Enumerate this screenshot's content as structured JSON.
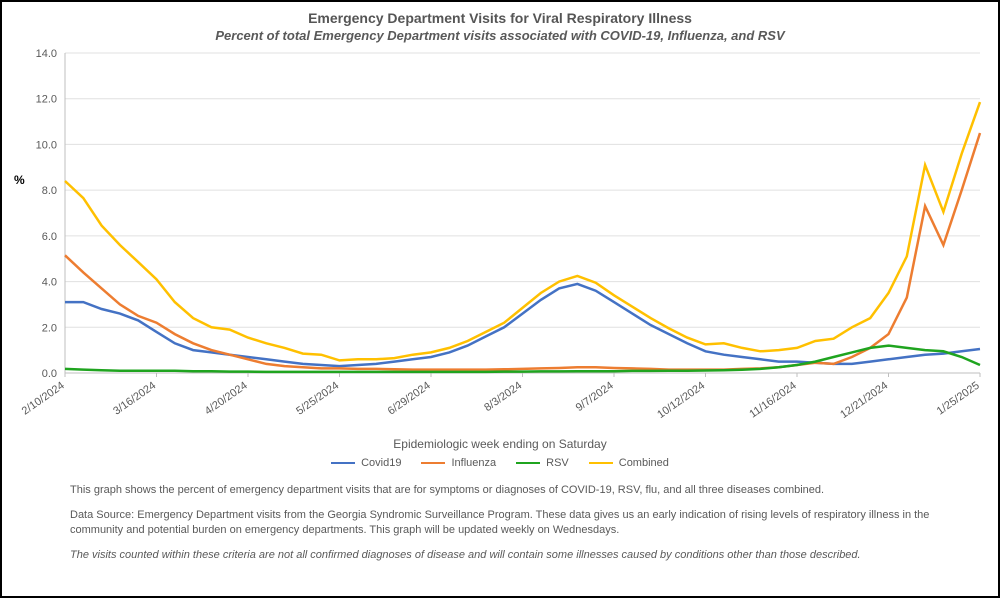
{
  "chart": {
    "type": "line",
    "title": "Emergency Department Visits for Viral Respiratory Illness",
    "subtitle": "Percent of total Emergency Department visits associated with COVID-19, Influenza, and RSV",
    "y_axis": {
      "label": "%",
      "min": 0.0,
      "max": 14.0,
      "tick_step": 2.0,
      "ticks": [
        "0.0",
        "2.0",
        "4.0",
        "6.0",
        "8.0",
        "10.0",
        "12.0",
        "14.0"
      ],
      "label_fontsize": 12,
      "tick_fontsize": 11
    },
    "x_axis": {
      "title": "Epidemiologic week ending on Saturday",
      "tick_indices": [
        0,
        5,
        10,
        15,
        20,
        25,
        30,
        35,
        40,
        45,
        50
      ],
      "tick_labels": [
        "2/10/2024",
        "3/16/2024",
        "4/20/2024",
        "5/25/2024",
        "6/29/2024",
        "8/3/2024",
        "9/7/2024",
        "10/12/2024",
        "11/16/2024",
        "12/21/2024",
        "1/25/2025"
      ],
      "tick_fontsize": 11,
      "rotation_deg": -35
    },
    "n_points": 51,
    "grid_color": "#e0e0e0",
    "axis_color": "#bfbfbf",
    "background_color": "#ffffff",
    "line_width": 2.5,
    "series": [
      {
        "name": "Covid19",
        "color": "#4472c4",
        "values": [
          3.1,
          3.1,
          2.8,
          2.6,
          2.3,
          1.8,
          1.3,
          1.0,
          0.9,
          0.8,
          0.7,
          0.6,
          0.5,
          0.4,
          0.35,
          0.3,
          0.35,
          0.4,
          0.5,
          0.6,
          0.7,
          0.9,
          1.2,
          1.6,
          2.0,
          2.6,
          3.2,
          3.7,
          3.9,
          3.6,
          3.1,
          2.6,
          2.1,
          1.7,
          1.3,
          0.95,
          0.8,
          0.7,
          0.6,
          0.5,
          0.5,
          0.45,
          0.4,
          0.4,
          0.5,
          0.6,
          0.7,
          0.8,
          0.85,
          0.95,
          1.05
        ]
      },
      {
        "name": "Influenza",
        "color": "#ed7d31",
        "values": [
          5.15,
          4.4,
          3.7,
          3.0,
          2.5,
          2.2,
          1.7,
          1.3,
          1.0,
          0.8,
          0.6,
          0.4,
          0.3,
          0.25,
          0.2,
          0.2,
          0.18,
          0.18,
          0.16,
          0.15,
          0.15,
          0.15,
          0.15,
          0.15,
          0.16,
          0.18,
          0.2,
          0.22,
          0.25,
          0.25,
          0.22,
          0.2,
          0.18,
          0.15,
          0.15,
          0.15,
          0.15,
          0.18,
          0.2,
          0.25,
          0.35,
          0.45,
          0.4,
          0.7,
          1.1,
          1.7,
          3.3,
          7.3,
          5.6,
          8.0,
          10.5
        ]
      },
      {
        "name": "RSV",
        "color": "#1fa41f",
        "values": [
          0.18,
          0.15,
          0.12,
          0.1,
          0.1,
          0.1,
          0.1,
          0.08,
          0.08,
          0.06,
          0.06,
          0.05,
          0.05,
          0.05,
          0.05,
          0.05,
          0.05,
          0.05,
          0.05,
          0.05,
          0.05,
          0.05,
          0.05,
          0.05,
          0.06,
          0.06,
          0.07,
          0.07,
          0.08,
          0.08,
          0.08,
          0.09,
          0.09,
          0.1,
          0.1,
          0.11,
          0.12,
          0.14,
          0.18,
          0.25,
          0.35,
          0.5,
          0.7,
          0.9,
          1.1,
          1.2,
          1.1,
          1.0,
          0.95,
          0.7,
          0.35
        ]
      },
      {
        "name": "Combined",
        "color": "#ffc000",
        "values": [
          8.4,
          7.65,
          6.45,
          5.6,
          4.85,
          4.1,
          3.1,
          2.4,
          2.0,
          1.9,
          1.55,
          1.3,
          1.1,
          0.85,
          0.8,
          0.55,
          0.6,
          0.6,
          0.65,
          0.8,
          0.9,
          1.1,
          1.4,
          1.8,
          2.2,
          2.85,
          3.5,
          4.0,
          4.25,
          3.95,
          3.4,
          2.9,
          2.4,
          1.95,
          1.55,
          1.25,
          1.3,
          1.1,
          0.95,
          1.0,
          1.1,
          1.4,
          1.5,
          2.0,
          2.4,
          3.5,
          5.1,
          9.1,
          7.05,
          9.6,
          11.85
        ]
      }
    ],
    "legend": {
      "items": [
        "Covid19",
        "Influenza",
        "RSV",
        "Combined"
      ]
    }
  },
  "footnotes": {
    "p1": "This graph shows the percent of emergency department visits that are for symptoms or diagnoses of COVID-19, RSV, flu, and all three diseases combined.",
    "p2": "Data Source: Emergency Department visits from the Georgia Syndromic Surveillance Program. These data gives us an early indication of rising levels of respiratory illness in the community and potential burden on emergency departments. This graph will be updated weekly on Wednesdays.",
    "p3": "The visits counted within these criteria are not all confirmed diagnoses of disease and will contain some illnesses caused by conditions other than those described."
  }
}
